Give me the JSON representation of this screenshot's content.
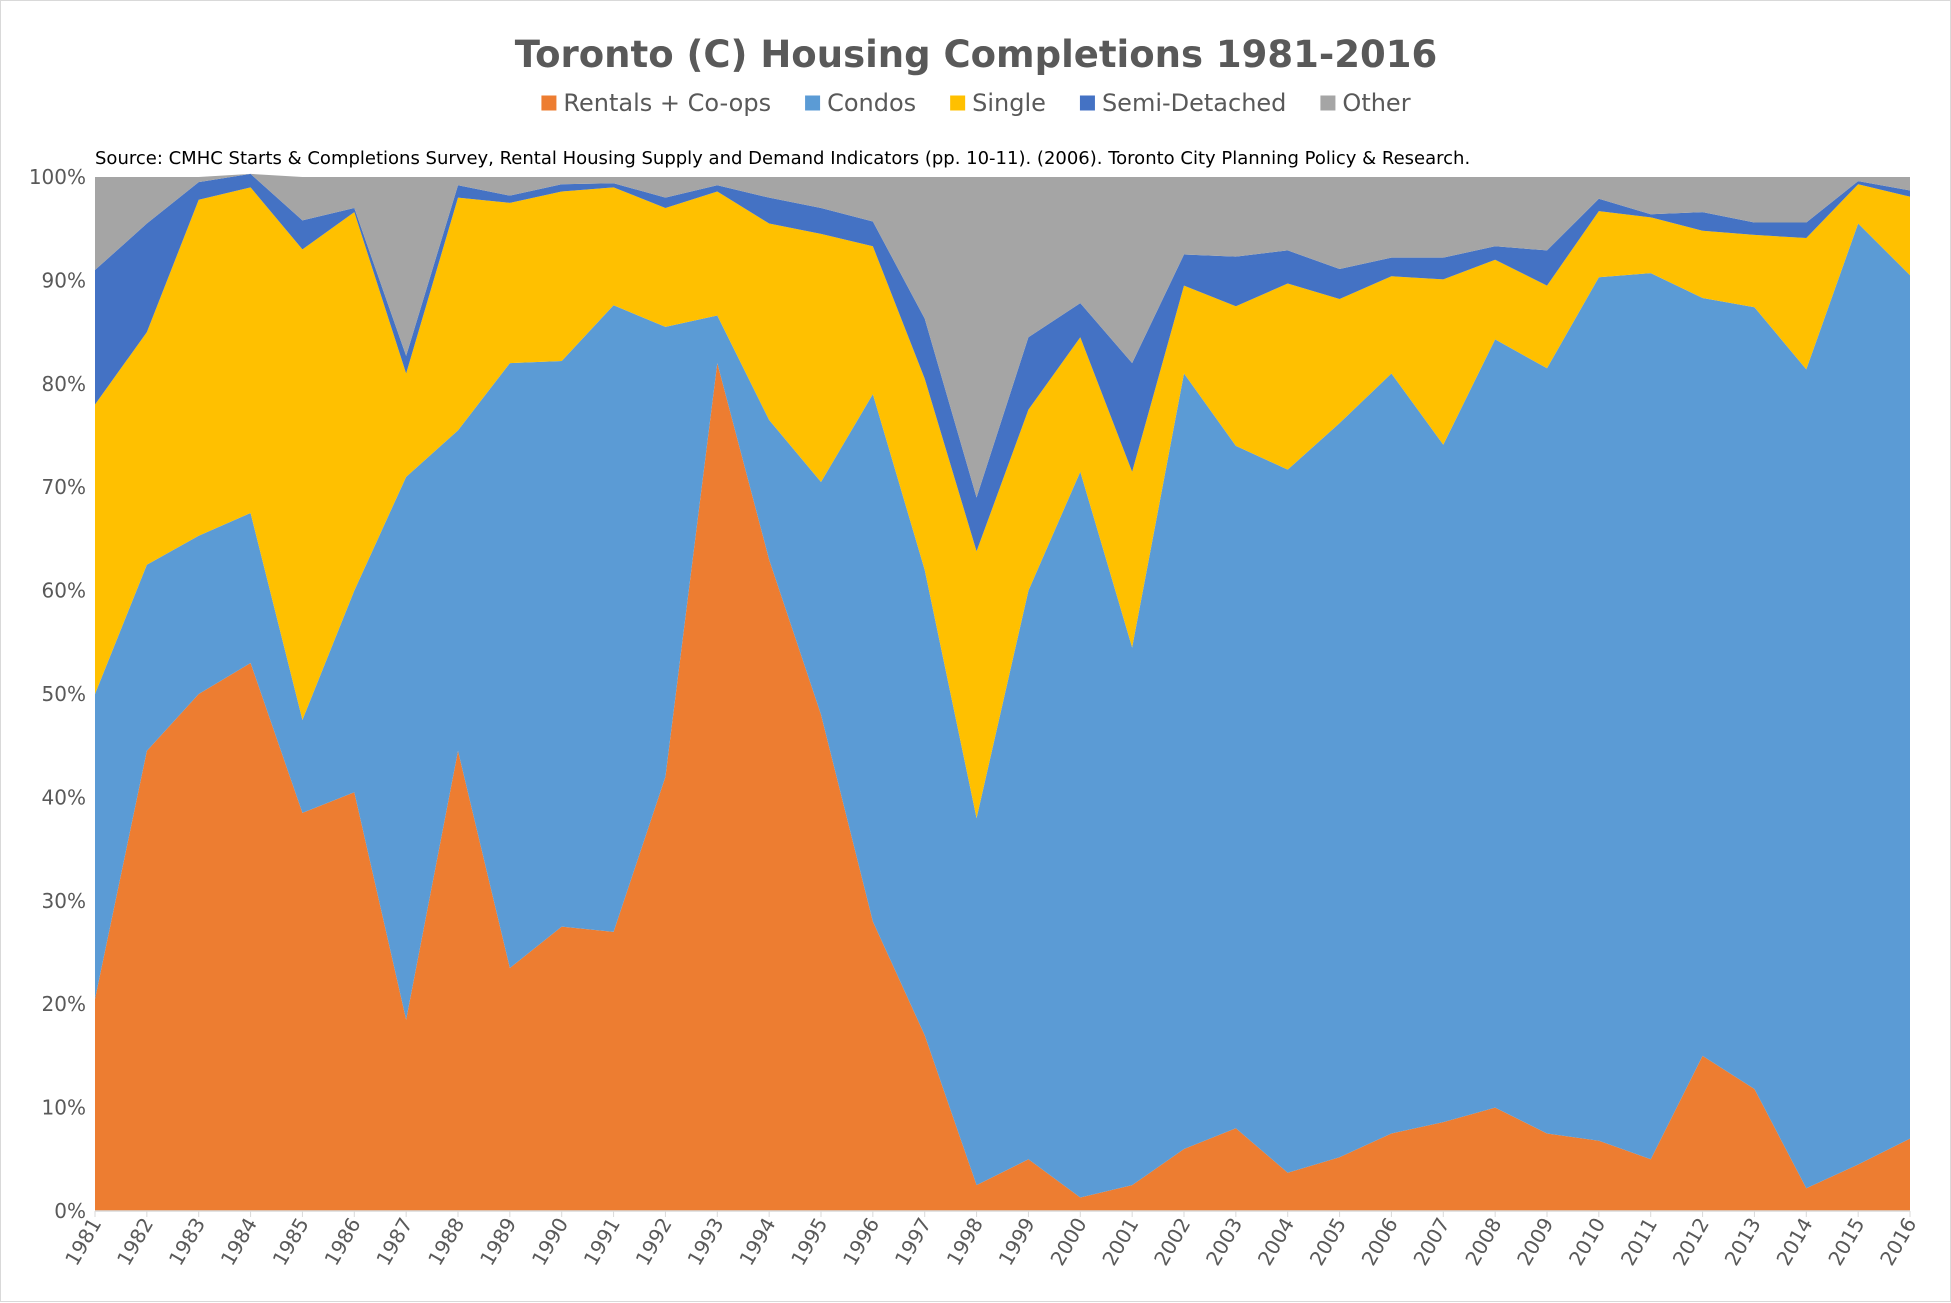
{
  "chart_data": {
    "type": "area",
    "stacked": true,
    "title": "Toronto (C) Housing Completions 1981-2016",
    "subtitle": "Source: CMHC Starts & Completions Survey, Rental Housing Supply and Demand Indicators (pp. 10-11). (2006). Toronto City Planning Policy & Research.",
    "xlabel": "",
    "ylabel": "",
    "ylim": [
      0,
      100
    ],
    "y_ticks": [
      "0%",
      "10%",
      "20%",
      "30%",
      "40%",
      "50%",
      "60%",
      "70%",
      "80%",
      "90%",
      "100%"
    ],
    "grid": false,
    "legend_position": "top",
    "x": [
      "1981",
      "1982",
      "1983",
      "1984",
      "1985",
      "1986",
      "1987",
      "1988",
      "1989",
      "1990",
      "1991",
      "1992",
      "1993",
      "1994",
      "1995",
      "1996",
      "1997",
      "1998",
      "1999",
      "2000",
      "2001",
      "2002",
      "2003",
      "2004",
      "2005",
      "2006",
      "2007",
      "2008",
      "2009",
      "2010",
      "2011",
      "2012",
      "2013",
      "2014",
      "2015",
      "2016"
    ],
    "series": [
      {
        "name": "Rentals + Co-ops",
        "color": "#ED7D31",
        "values": [
          20.5,
          44.5,
          50.0,
          53.0,
          38.5,
          40.5,
          18.5,
          44.5,
          23.5,
          27.5,
          27.0,
          42.0,
          82.0,
          63.0,
          48.0,
          28.0,
          17.0,
          2.5,
          5.0,
          1.3,
          2.5,
          6.0,
          8.0,
          3.7,
          5.2,
          7.5,
          8.6,
          10.0,
          7.5,
          6.8,
          5.0,
          15.0,
          11.8,
          2.2,
          4.5,
          7.0
        ]
      },
      {
        "name": "Condos",
        "color": "#5B9BD5",
        "values": [
          29.5,
          18.0,
          15.3,
          14.5,
          9.0,
          19.5,
          52.5,
          31.0,
          58.5,
          54.7,
          60.6,
          43.5,
          4.6,
          13.5,
          22.5,
          51.0,
          45.0,
          35.5,
          55.0,
          70.2,
          52.0,
          75.0,
          66.0,
          68.0,
          71.0,
          73.5,
          65.5,
          74.3,
          74.0,
          83.5,
          85.7,
          73.3,
          75.6,
          79.2,
          91.0,
          83.5
        ]
      },
      {
        "name": "Single",
        "color": "#FFC000",
        "values": [
          28.0,
          22.5,
          32.5,
          31.5,
          45.5,
          36.6,
          10.0,
          22.5,
          15.5,
          16.4,
          11.4,
          11.5,
          12.0,
          19.0,
          24.0,
          14.3,
          18.5,
          25.8,
          17.5,
          13.0,
          17.0,
          8.5,
          13.5,
          18.0,
          12.0,
          9.4,
          16.0,
          7.7,
          8.0,
          6.4,
          5.4,
          6.5,
          7.0,
          12.7,
          3.8,
          7.6
        ]
      },
      {
        "name": "Semi-Detached",
        "color": "#4472C4",
        "values": [
          13.0,
          10.5,
          1.7,
          1.3,
          2.8,
          0.4,
          1.7,
          1.2,
          0.7,
          0.7,
          0.4,
          1.0,
          0.6,
          2.5,
          2.5,
          2.4,
          5.8,
          5.2,
          7.0,
          3.3,
          10.5,
          3.0,
          4.8,
          3.2,
          2.9,
          1.8,
          2.1,
          1.3,
          3.4,
          1.2,
          0.3,
          1.8,
          1.2,
          1.5,
          0.3,
          0.6
        ]
      },
      {
        "name": "Other",
        "color": "#A5A5A5",
        "values": [
          9.0,
          4.5,
          0.5,
          0.0,
          4.2,
          3.0,
          17.3,
          0.8,
          1.8,
          0.7,
          0.6,
          2.0,
          0.8,
          2.0,
          3.0,
          4.3,
          13.7,
          31.0,
          15.5,
          12.2,
          18.0,
          7.5,
          7.7,
          7.1,
          8.9,
          7.8,
          7.8,
          6.7,
          7.1,
          2.1,
          3.6,
          3.4,
          4.4,
          4.4,
          0.4,
          1.3
        ]
      }
    ]
  }
}
